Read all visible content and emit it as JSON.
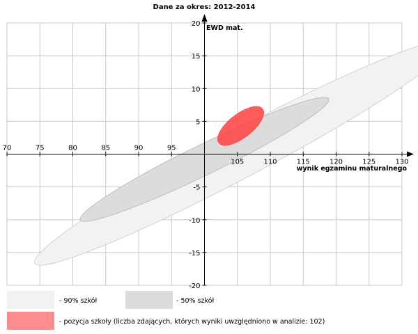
{
  "chart_data": {
    "type": "scatter",
    "title": "Dane za okres: 2012-2014",
    "xlabel": "wynik egzaminu maturalnego",
    "ylabel": "EWD mat.",
    "xlim": [
      70,
      130
    ],
    "ylim": [
      -20,
      20
    ],
    "x_ticks": [
      70,
      75,
      80,
      85,
      90,
      95,
      105,
      110,
      115,
      120,
      125,
      130
    ],
    "y_ticks": [
      20,
      15,
      10,
      5,
      -5,
      -10,
      -15,
      -20
    ],
    "grid": true,
    "colors": {
      "grid": "#c8c8c8",
      "ellipse_90": "#f2f2f2",
      "ellipse_90_stroke": "#c8c8c8",
      "ellipse_50": "#dcdcdc",
      "ellipse_50_stroke": "#b4b4b4",
      "school": "#ff4040",
      "school_legend": "#ff8c8c",
      "axis": "#000000"
    },
    "ellipses": [
      {
        "id": "ellipse-90",
        "cx": 106,
        "cy": 0.3,
        "rx": 36,
        "ry": 3.6,
        "angle_deg": 28
      },
      {
        "id": "ellipse-50",
        "cx": 100,
        "cy": -0.8,
        "rx": 21,
        "ry": 2.3,
        "angle_deg": 26
      },
      {
        "id": "school-ellipse",
        "cx": 105.5,
        "cy": 4.3,
        "rx": 4.2,
        "ry": 1.8,
        "angle_deg": 38
      }
    ]
  },
  "legend": {
    "label_90": "- 90% szkół",
    "label_50": "- 50% szkół",
    "label_school": "- pozycja szkoły (liczba zdających, których wyniki uwzględniono w analizie: 102)"
  }
}
